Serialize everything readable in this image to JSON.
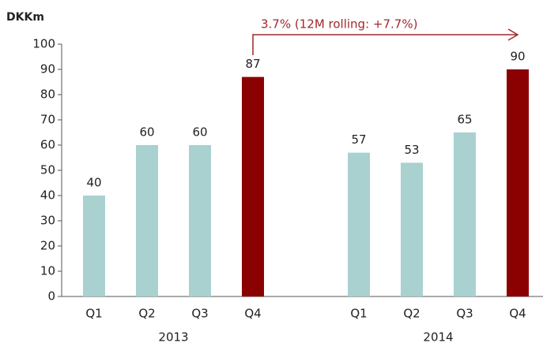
{
  "chart_data": {
    "type": "bar",
    "y_axis_label": "DKKm",
    "annotation": "3.7% (12M rolling: +7.7%)",
    "annotation_color": "#a0282a",
    "groups": [
      {
        "label": "2013",
        "categories": [
          "Q1",
          "Q2",
          "Q3",
          "Q4"
        ],
        "values": [
          40,
          60,
          60,
          87
        ],
        "colors": [
          "#a9d1d0",
          "#a9d1d0",
          "#a9d1d0",
          "#8b0000"
        ]
      },
      {
        "label": "2014",
        "categories": [
          "Q1",
          "Q2",
          "Q3",
          "Q4"
        ],
        "values": [
          57,
          53,
          65,
          90
        ],
        "colors": [
          "#a9d1d0",
          "#a9d1d0",
          "#a9d1d0",
          "#8b0000"
        ]
      }
    ],
    "ylim": [
      0,
      100
    ],
    "yticks": [
      0,
      10,
      20,
      30,
      40,
      50,
      60,
      70,
      80,
      90,
      100
    ],
    "grid": false
  }
}
